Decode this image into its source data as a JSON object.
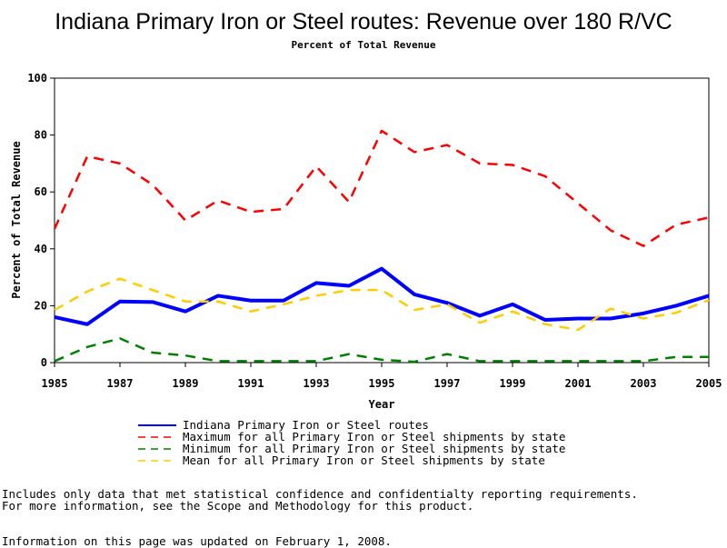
{
  "chart_data": {
    "type": "line",
    "title": "Indiana Primary Iron or Steel routes: Revenue over 180 R/VC",
    "subtitle": "Percent of Total Revenue",
    "xlabel": "Year",
    "ylabel": "Percent of Total Revenue",
    "xlim": [
      1985,
      2005
    ],
    "ylim": [
      0,
      100
    ],
    "x": [
      1985,
      1986,
      1987,
      1988,
      1989,
      1990,
      1991,
      1992,
      1993,
      1994,
      1995,
      1996,
      1997,
      1998,
      1999,
      2000,
      2001,
      2002,
      2003,
      2004,
      2005
    ],
    "x_ticks": [
      "1985",
      "1987",
      "1989",
      "1991",
      "1993",
      "1995",
      "1997",
      "1999",
      "2001",
      "2003",
      "2005"
    ],
    "y_ticks": [
      "0",
      "20",
      "40",
      "60",
      "80",
      "100"
    ],
    "series": [
      {
        "name": "Indiana Primary Iron or Steel routes",
        "color": "#0000ff",
        "style": "solid",
        "values": [
          16,
          13.5,
          21.5,
          21.3,
          18,
          23.5,
          21.8,
          21.8,
          28,
          27,
          33,
          24,
          21,
          16.5,
          20.5,
          15,
          15.5,
          15.5,
          17.3,
          20,
          23.5
        ]
      },
      {
        "name": "Maximum for all Primary Iron or Steel shipments by state",
        "color": "#ff0000",
        "style": "dashed",
        "values": [
          47,
          72.5,
          70,
          62.5,
          50,
          57,
          53,
          54,
          69,
          56.5,
          81.5,
          74,
          76.5,
          70,
          69.5,
          65.5,
          56,
          46.5,
          41,
          48.5,
          51
        ]
      },
      {
        "name": "Minimum for all Primary Iron or Steel shipments by state",
        "color": "#008000",
        "style": "dashed",
        "values": [
          0.5,
          5.5,
          8.5,
          3.5,
          2.5,
          0.5,
          0.5,
          0.5,
          0.5,
          3,
          1,
          0.3,
          3,
          0.5,
          0.5,
          0.5,
          0.5,
          0.5,
          0.5,
          2,
          2
        ]
      },
      {
        "name": "Mean for all Primary Iron or Steel shipments by state",
        "color": "#ffcc00",
        "style": "dashed",
        "values": [
          18.5,
          25,
          29.5,
          25.5,
          21.5,
          21.5,
          18,
          20.5,
          23.5,
          25.5,
          25.5,
          18.5,
          20.5,
          14,
          18,
          13.5,
          11.5,
          19,
          15.5,
          17.5,
          22
        ]
      }
    ]
  },
  "footnotes": [
    "Includes only data that met statistical confidence and confidentialty reporting requirements.",
    "For more information, see the Scope and Methodology for this product.",
    "Information on this page was updated on February 1, 2008."
  ]
}
